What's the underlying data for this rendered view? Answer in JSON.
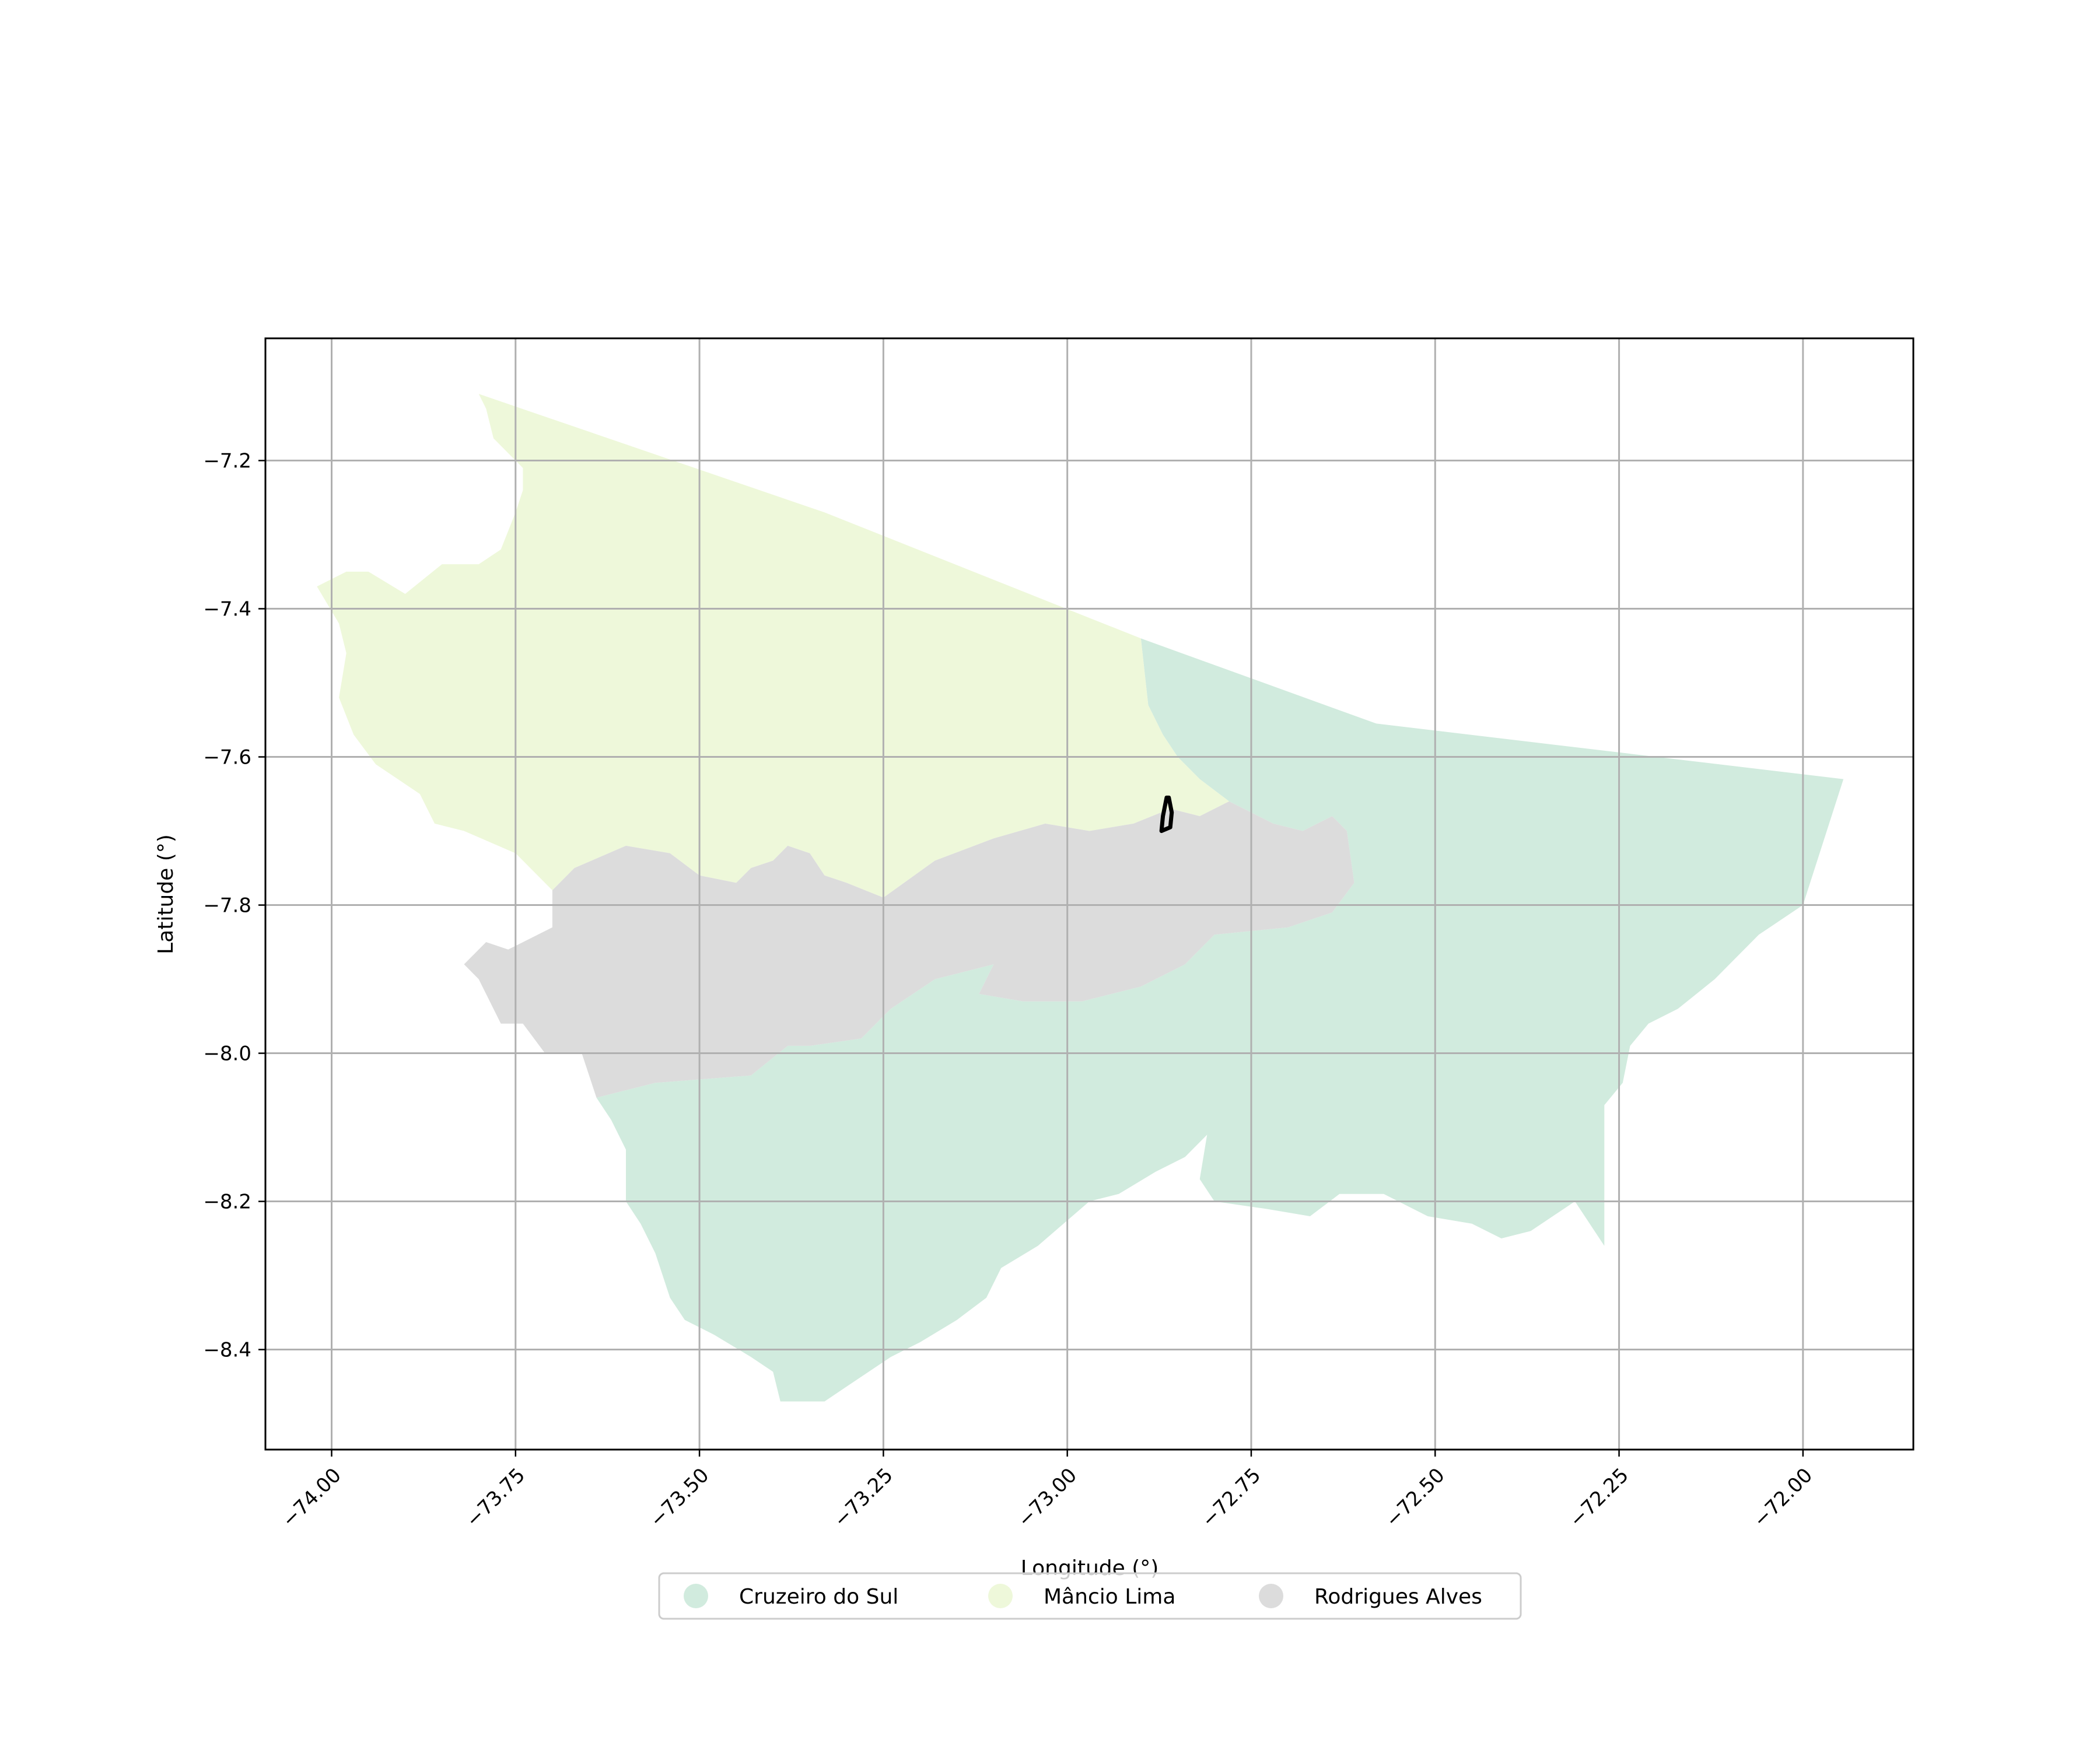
{
  "chart_data": {
    "type": "choropleth map",
    "xlabel": "Longitude (°)",
    "ylabel": "Latitude (°)",
    "xlim": [
      -74.09,
      -71.85
    ],
    "ylim": [
      -8.535,
      -7.035
    ],
    "grid": true,
    "legend_position": "bottom-center",
    "x_ticks": [
      {
        "value": -74.0,
        "label": "−74.00"
      },
      {
        "value": -73.75,
        "label": "−73.75"
      },
      {
        "value": -73.5,
        "label": "−73.50"
      },
      {
        "value": -73.25,
        "label": "−73.25"
      },
      {
        "value": -73.0,
        "label": "−73.00"
      },
      {
        "value": -72.75,
        "label": "−72.75"
      },
      {
        "value": -72.5,
        "label": "−72.50"
      },
      {
        "value": -72.25,
        "label": "−72.25"
      },
      {
        "value": -72.0,
        "label": "−72.00"
      }
    ],
    "y_ticks": [
      {
        "value": -7.2,
        "label": "−7.2"
      },
      {
        "value": -7.4,
        "label": "−7.4"
      },
      {
        "value": -7.6,
        "label": "−7.6"
      },
      {
        "value": -7.8,
        "label": "−7.8"
      },
      {
        "value": -8.0,
        "label": "−8.0"
      },
      {
        "value": -8.2,
        "label": "−8.2"
      },
      {
        "value": -8.4,
        "label": "−8.4"
      }
    ],
    "regions": [
      {
        "name": "Cruzeiro do Sul",
        "color": "#d1ebde",
        "boundary": [
          [
            -72.9,
            -7.44
          ],
          [
            -72.58,
            -7.555
          ],
          [
            -71.945,
            -7.63
          ],
          [
            -72.0,
            -7.8
          ],
          [
            -72.06,
            -7.84
          ],
          [
            -72.12,
            -7.9
          ],
          [
            -72.17,
            -7.94
          ],
          [
            -72.21,
            -7.96
          ],
          [
            -72.235,
            -7.99
          ],
          [
            -72.245,
            -8.04
          ],
          [
            -72.27,
            -8.07
          ],
          [
            -72.27,
            -8.26
          ],
          [
            -72.31,
            -8.2
          ],
          [
            -72.37,
            -8.24
          ],
          [
            -72.41,
            -8.25
          ],
          [
            -72.45,
            -8.23
          ],
          [
            -72.51,
            -8.22
          ],
          [
            -72.57,
            -8.19
          ],
          [
            -72.63,
            -8.19
          ],
          [
            -72.67,
            -8.22
          ],
          [
            -72.73,
            -8.21
          ],
          [
            -72.8,
            -8.2
          ],
          [
            -72.82,
            -8.17
          ],
          [
            -72.81,
            -8.11
          ],
          [
            -72.84,
            -8.14
          ],
          [
            -72.88,
            -8.16
          ],
          [
            -72.93,
            -8.19
          ],
          [
            -72.97,
            -8.2
          ],
          [
            -73.04,
            -8.26
          ],
          [
            -73.09,
            -8.29
          ],
          [
            -73.11,
            -8.33
          ],
          [
            -73.15,
            -8.36
          ],
          [
            -73.2,
            -8.39
          ],
          [
            -73.24,
            -8.41
          ],
          [
            -73.3,
            -8.45
          ],
          [
            -73.33,
            -8.47
          ],
          [
            -73.36,
            -8.47
          ],
          [
            -73.39,
            -8.47
          ],
          [
            -73.4,
            -8.43
          ],
          [
            -73.43,
            -8.41
          ],
          [
            -73.48,
            -8.38
          ],
          [
            -73.52,
            -8.36
          ],
          [
            -73.54,
            -8.33
          ],
          [
            -73.56,
            -8.27
          ],
          [
            -73.58,
            -8.23
          ],
          [
            -73.6,
            -8.2
          ],
          [
            -73.6,
            -8.13
          ],
          [
            -73.62,
            -8.09
          ],
          [
            -73.64,
            -8.06
          ],
          [
            -73.56,
            -8.04
          ],
          [
            -73.43,
            -8.03
          ],
          [
            -73.38,
            -7.99
          ],
          [
            -73.35,
            -7.99
          ],
          [
            -73.28,
            -7.98
          ],
          [
            -73.24,
            -7.94
          ],
          [
            -73.18,
            -7.9
          ],
          [
            -73.1,
            -7.88
          ],
          [
            -73.12,
            -7.92
          ],
          [
            -73.06,
            -7.93
          ],
          [
            -72.98,
            -7.93
          ],
          [
            -72.9,
            -7.91
          ],
          [
            -72.84,
            -7.88
          ],
          [
            -72.8,
            -7.84
          ],
          [
            -72.7,
            -7.83
          ],
          [
            -72.64,
            -7.81
          ],
          [
            -72.61,
            -7.77
          ],
          [
            -72.62,
            -7.7
          ],
          [
            -72.64,
            -7.68
          ],
          [
            -72.68,
            -7.7
          ],
          [
            -72.72,
            -7.69
          ],
          [
            -72.78,
            -7.66
          ],
          [
            -72.82,
            -7.63
          ],
          [
            -72.85,
            -7.6
          ],
          [
            -72.87,
            -7.57
          ],
          [
            -72.89,
            -7.53
          ]
        ]
      },
      {
        "name": "Mâncio Lima",
        "color": "#eef8da",
        "boundary": [
          [
            -73.8,
            -7.11
          ],
          [
            -73.33,
            -7.27
          ],
          [
            -72.9,
            -7.44
          ],
          [
            -72.89,
            -7.53
          ],
          [
            -72.87,
            -7.57
          ],
          [
            -72.85,
            -7.6
          ],
          [
            -72.82,
            -7.63
          ],
          [
            -72.78,
            -7.66
          ],
          [
            -72.82,
            -7.68
          ],
          [
            -72.86,
            -7.67
          ],
          [
            -72.91,
            -7.69
          ],
          [
            -72.97,
            -7.7
          ],
          [
            -73.03,
            -7.69
          ],
          [
            -73.1,
            -7.71
          ],
          [
            -73.18,
            -7.74
          ],
          [
            -73.25,
            -7.79
          ],
          [
            -73.3,
            -7.77
          ],
          [
            -73.33,
            -7.76
          ],
          [
            -73.35,
            -7.73
          ],
          [
            -73.38,
            -7.72
          ],
          [
            -73.4,
            -7.74
          ],
          [
            -73.43,
            -7.75
          ],
          [
            -73.45,
            -7.77
          ],
          [
            -73.5,
            -7.76
          ],
          [
            -73.54,
            -7.73
          ],
          [
            -73.6,
            -7.72
          ],
          [
            -73.67,
            -7.75
          ],
          [
            -73.7,
            -7.78
          ],
          [
            -73.75,
            -7.73
          ],
          [
            -73.82,
            -7.7
          ],
          [
            -73.86,
            -7.69
          ],
          [
            -73.88,
            -7.65
          ],
          [
            -73.91,
            -7.63
          ],
          [
            -73.94,
            -7.61
          ],
          [
            -73.97,
            -7.57
          ],
          [
            -73.99,
            -7.52
          ],
          [
            -73.98,
            -7.46
          ],
          [
            -73.99,
            -7.42
          ],
          [
            -74.02,
            -7.37
          ],
          [
            -73.98,
            -7.35
          ],
          [
            -73.95,
            -7.35
          ],
          [
            -73.9,
            -7.38
          ],
          [
            -73.85,
            -7.34
          ],
          [
            -73.8,
            -7.34
          ],
          [
            -73.77,
            -7.32
          ],
          [
            -73.75,
            -7.27
          ],
          [
            -73.74,
            -7.24
          ],
          [
            -73.74,
            -7.21
          ],
          [
            -73.78,
            -7.17
          ],
          [
            -73.79,
            -7.13
          ]
        ]
      },
      {
        "name": "Rodrigues Alves",
        "color": "#dcdcdc",
        "boundary": [
          [
            -73.25,
            -7.79
          ],
          [
            -73.18,
            -7.74
          ],
          [
            -73.1,
            -7.71
          ],
          [
            -73.03,
            -7.69
          ],
          [
            -72.97,
            -7.7
          ],
          [
            -72.91,
            -7.69
          ],
          [
            -72.86,
            -7.67
          ],
          [
            -72.82,
            -7.68
          ],
          [
            -72.78,
            -7.66
          ],
          [
            -72.72,
            -7.69
          ],
          [
            -72.68,
            -7.7
          ],
          [
            -72.64,
            -7.68
          ],
          [
            -72.62,
            -7.7
          ],
          [
            -72.61,
            -7.77
          ],
          [
            -72.64,
            -7.81
          ],
          [
            -72.7,
            -7.83
          ],
          [
            -72.8,
            -7.84
          ],
          [
            -72.84,
            -7.88
          ],
          [
            -72.9,
            -7.91
          ],
          [
            -72.98,
            -7.93
          ],
          [
            -73.06,
            -7.93
          ],
          [
            -73.12,
            -7.92
          ],
          [
            -73.1,
            -7.88
          ],
          [
            -73.18,
            -7.9
          ],
          [
            -73.24,
            -7.94
          ],
          [
            -73.28,
            -7.98
          ],
          [
            -73.35,
            -7.99
          ],
          [
            -73.38,
            -7.99
          ],
          [
            -73.43,
            -8.03
          ],
          [
            -73.56,
            -8.04
          ],
          [
            -73.64,
            -8.06
          ],
          [
            -73.66,
            -8.0
          ],
          [
            -73.71,
            -8.0
          ],
          [
            -73.74,
            -7.96
          ],
          [
            -73.77,
            -7.96
          ],
          [
            -73.8,
            -7.9
          ],
          [
            -73.82,
            -7.88
          ],
          [
            -73.79,
            -7.85
          ],
          [
            -73.76,
            -7.86
          ],
          [
            -73.7,
            -7.83
          ],
          [
            -73.7,
            -7.78
          ],
          [
            -73.67,
            -7.75
          ],
          [
            -73.6,
            -7.72
          ],
          [
            -73.54,
            -7.73
          ],
          [
            -73.5,
            -7.76
          ],
          [
            -73.45,
            -7.77
          ],
          [
            -73.43,
            -7.75
          ],
          [
            -73.4,
            -7.74
          ],
          [
            -73.38,
            -7.72
          ],
          [
            -73.35,
            -7.73
          ],
          [
            -73.33,
            -7.76
          ],
          [
            -73.3,
            -7.77
          ]
        ]
      }
    ],
    "outline": {
      "color": "#000000",
      "boundary": [
        [
          -72.865,
          -7.655
        ],
        [
          -72.87,
          -7.68
        ],
        [
          -72.872,
          -7.7
        ],
        [
          -72.86,
          -7.695
        ],
        [
          -72.858,
          -7.675
        ],
        [
          -72.862,
          -7.655
        ]
      ]
    },
    "legend": [
      {
        "name": "Cruzeiro do Sul",
        "color": "#d1ebde"
      },
      {
        "name": "Mâncio Lima",
        "color": "#eef8da"
      },
      {
        "name": "Rodrigues Alves",
        "color": "#dcdcdc"
      }
    ]
  }
}
